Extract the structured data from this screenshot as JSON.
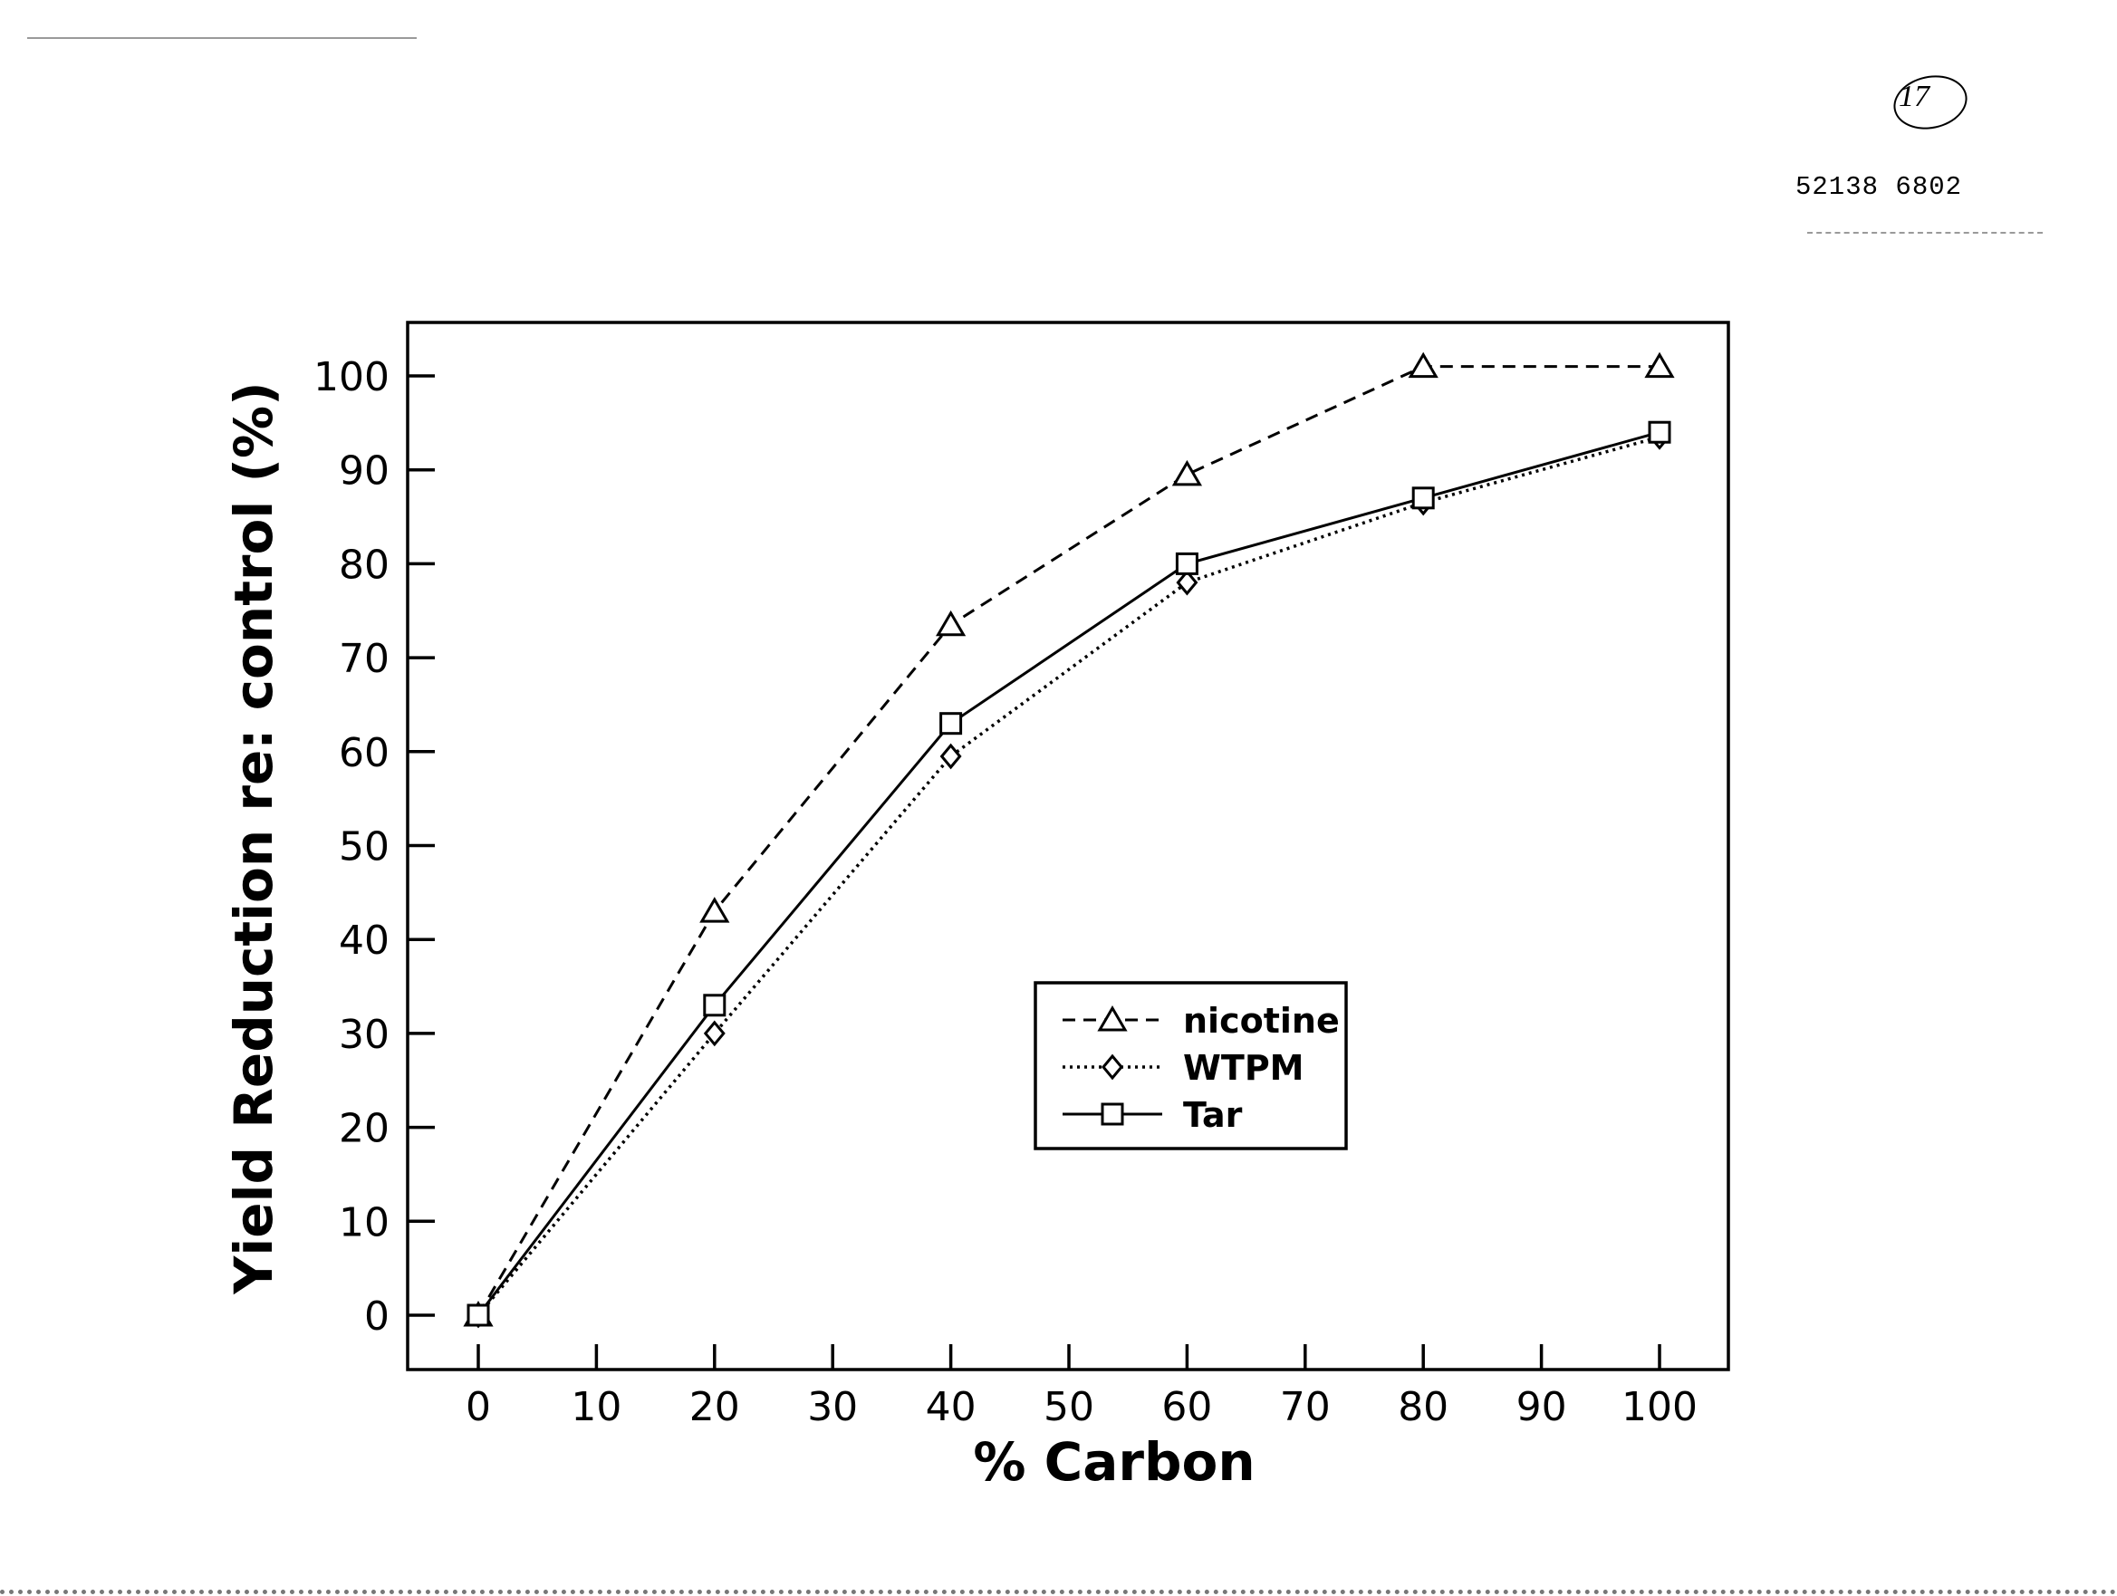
{
  "page": {
    "page_number": "17",
    "doc_id": "52138 6802"
  },
  "chart_data": {
    "type": "line",
    "title": "",
    "xlabel": "% Carbon",
    "ylabel": "Yield Reduction re: control (%)",
    "x": [
      0,
      20,
      40,
      60,
      80,
      100
    ],
    "xlim": [
      0,
      100
    ],
    "ylim": [
      0,
      100
    ],
    "xticks": [
      0,
      10,
      20,
      30,
      40,
      50,
      60,
      70,
      80,
      90,
      100
    ],
    "yticks": [
      0,
      10,
      20,
      30,
      40,
      50,
      60,
      70,
      80,
      90,
      100
    ],
    "grid": false,
    "legend_position": "center-right",
    "series": [
      {
        "name": "nicotine",
        "marker": "triangle",
        "line_style": "dashed",
        "values": [
          0,
          43,
          73.5,
          89.5,
          101,
          101
        ]
      },
      {
        "name": "WTPM",
        "marker": "diamond",
        "line_style": "dotted",
        "values": [
          0,
          30,
          59.5,
          78,
          86.5,
          93.5
        ]
      },
      {
        "name": "Tar",
        "marker": "square",
        "line_style": "solid",
        "values": [
          0,
          33,
          63,
          80,
          87,
          94
        ]
      }
    ]
  }
}
